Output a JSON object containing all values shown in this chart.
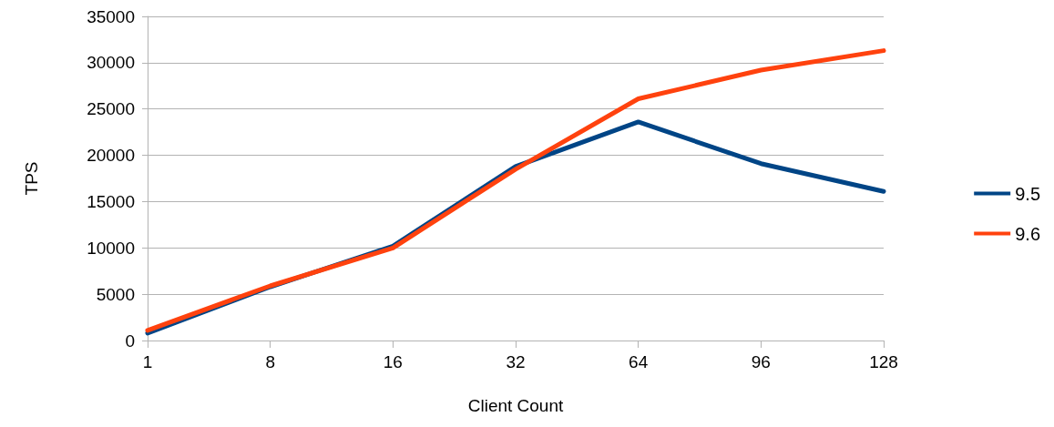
{
  "chart_data": {
    "type": "line",
    "xlabel": "Client Count",
    "ylabel": "TPS",
    "categories": [
      "1",
      "8",
      "16",
      "32",
      "64",
      "96",
      "128"
    ],
    "series": [
      {
        "name": "9.5",
        "color": "#004586",
        "values": [
          800,
          5800,
          10200,
          18800,
          23600,
          19100,
          16100
        ]
      },
      {
        "name": "9.6",
        "color": "#ff420e",
        "values": [
          1100,
          5900,
          10000,
          18500,
          26100,
          29200,
          31300
        ]
      }
    ],
    "ylim": [
      0,
      35000
    ],
    "yticks": [
      0,
      5000,
      10000,
      15000,
      20000,
      25000,
      30000,
      35000
    ],
    "grid": "y",
    "legend": "right",
    "marker": "none",
    "line_style": "solid"
  }
}
